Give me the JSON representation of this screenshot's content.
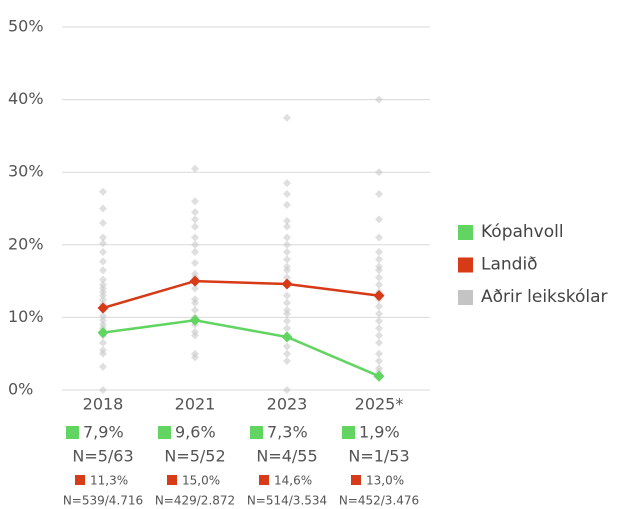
{
  "chart_data": {
    "type": "line",
    "categories": [
      "2018",
      "2021",
      "2023",
      "2025*"
    ],
    "ylim": [
      0,
      50
    ],
    "yticks": [
      {
        "value": 0,
        "label": "0%"
      },
      {
        "value": 10,
        "label": "10%"
      },
      {
        "value": 20,
        "label": "20%"
      },
      {
        "value": 30,
        "label": "30%"
      },
      {
        "value": 40,
        "label": "40%"
      },
      {
        "value": 50,
        "label": "50%"
      }
    ],
    "grid": true,
    "legend": "right",
    "series": [
      {
        "name": "Kópahvoll",
        "color": "#62d462",
        "values": [
          7.9,
          9.6,
          7.3,
          1.9
        ],
        "value_labels": [
          "7,9%",
          "9,6%",
          "7,3%",
          "1,9%"
        ],
        "n_labels": [
          "N=5/63",
          "N=5/52",
          "N=4/55",
          "N=1/53"
        ]
      },
      {
        "name": "Landið",
        "color": "#d63a17",
        "values": [
          11.3,
          15.0,
          14.6,
          13.0
        ],
        "value_labels": [
          "11,3%",
          "15,0%",
          "14,6%",
          "13,0%"
        ],
        "n_labels": [
          "N=539/4.716",
          "N=429/2.872",
          "N=514/3.534",
          "N=452/3.476"
        ]
      },
      {
        "name": "Aðrir leikskólar",
        "color": "#c4c4c4",
        "type": "scatter",
        "values": [
          [
            27.3,
            25,
            23,
            21,
            20.2,
            19,
            17.7,
            16.5,
            15.2,
            14.5,
            14,
            13.5,
            13,
            12.4,
            11.8,
            11,
            10.2,
            9.6,
            9,
            8.5,
            7.5,
            6.5,
            5.5,
            5,
            3.2,
            0
          ],
          [
            30.5,
            26,
            24.5,
            23.5,
            22.5,
            21,
            20,
            19,
            17.5,
            16,
            15.5,
            14,
            12.5,
            12,
            11,
            10,
            9,
            8,
            7.5,
            5,
            4.5
          ],
          [
            37.5,
            28.5,
            27,
            25.5,
            23.3,
            22.5,
            21,
            20,
            19,
            18,
            17,
            16.5,
            15.5,
            14.5,
            13,
            12,
            11,
            10.5,
            9.5,
            8.5,
            7.5,
            6,
            5,
            4,
            0
          ],
          [
            40,
            30,
            27,
            23.5,
            21,
            19,
            18,
            17,
            16.5,
            15.5,
            14.5,
            13.5,
            12.5,
            11.5,
            10.5,
            9.5,
            8.5,
            7.5,
            6.5,
            5,
            4,
            3,
            2.5
          ]
        ]
      }
    ]
  }
}
